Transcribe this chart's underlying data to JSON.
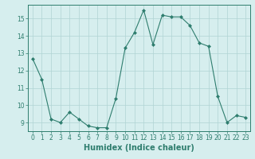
{
  "x": [
    0,
    1,
    2,
    3,
    4,
    5,
    6,
    7,
    8,
    9,
    10,
    11,
    12,
    13,
    14,
    15,
    16,
    17,
    18,
    19,
    20,
    21,
    22,
    23
  ],
  "y": [
    12.7,
    11.5,
    9.2,
    9.0,
    9.6,
    9.2,
    8.8,
    8.7,
    8.7,
    10.4,
    13.3,
    14.2,
    15.5,
    13.5,
    15.2,
    15.1,
    15.1,
    14.6,
    13.6,
    13.4,
    10.5,
    9.0,
    9.4,
    9.3
  ],
  "line_color": "#2e7d6e",
  "marker": "D",
  "marker_size": 2,
  "bg_color": "#d6eeee",
  "grid_color": "#b0d4d4",
  "xlabel": "Humidex (Indice chaleur)",
  "ylim": [
    8.5,
    15.8
  ],
  "xlim": [
    -0.5,
    23.5
  ],
  "yticks": [
    9,
    10,
    11,
    12,
    13,
    14,
    15
  ],
  "xticks": [
    0,
    1,
    2,
    3,
    4,
    5,
    6,
    7,
    8,
    9,
    10,
    11,
    12,
    13,
    14,
    15,
    16,
    17,
    18,
    19,
    20,
    21,
    22,
    23
  ],
  "tick_color": "#2e7d6e",
  "label_color": "#2e7d6e",
  "tick_fontsize": 5.5,
  "xlabel_fontsize": 7
}
